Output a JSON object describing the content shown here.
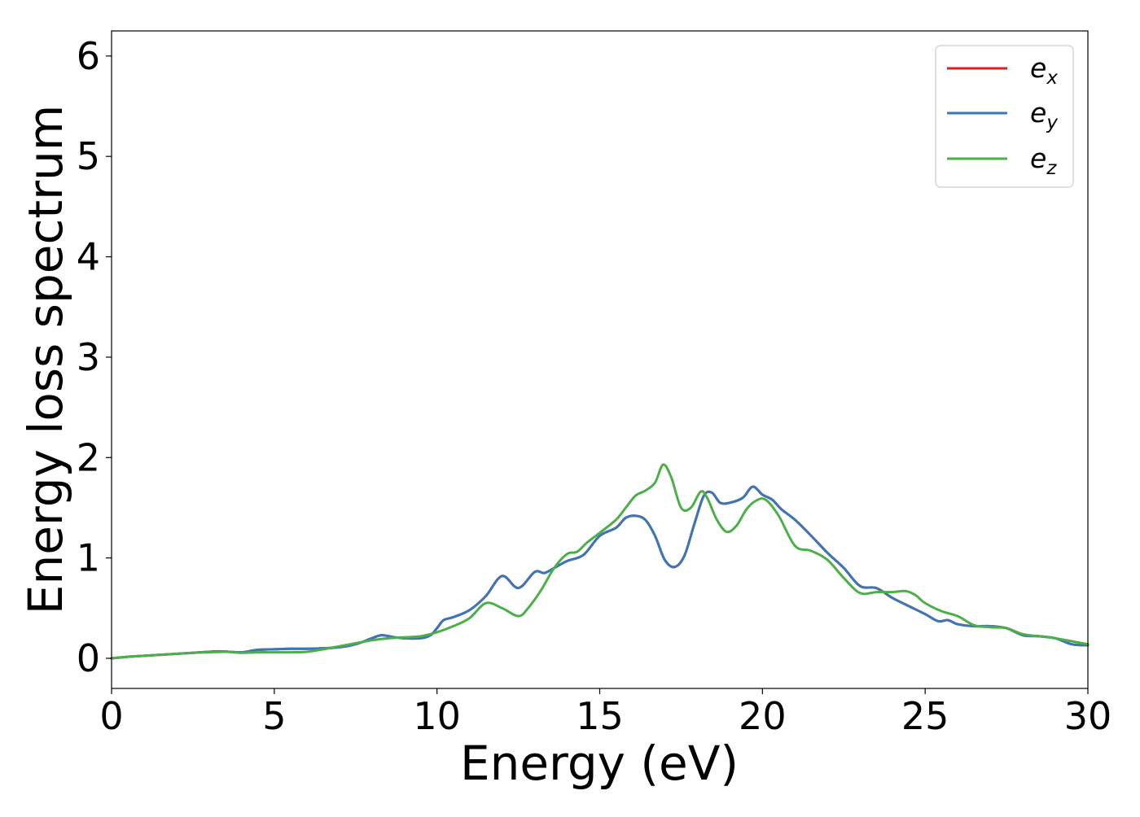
{
  "chart_data": {
    "type": "line",
    "xlabel": "Energy (eV)",
    "ylabel": "Energy loss spectrum",
    "xlim": [
      0,
      30
    ],
    "ylim": [
      -0.3,
      6.25
    ],
    "xticks": [
      0,
      5,
      10,
      15,
      20,
      25,
      30
    ],
    "yticks": [
      0,
      1,
      2,
      3,
      4,
      5,
      6
    ],
    "grid": false,
    "legend_position": "top-right",
    "series": [
      {
        "name": "e",
        "subscript": "x",
        "color": "#e41a1c",
        "x": [
          0,
          0.5,
          1,
          1.5,
          2,
          2.5,
          3,
          3.3,
          3.6,
          4,
          4.5,
          5,
          5.5,
          6,
          6.5,
          7,
          7.5,
          8,
          8.3,
          8.7,
          9,
          9.5,
          9.8,
          10,
          10.2,
          10.5,
          11,
          11.5,
          12,
          12.5,
          13,
          13.3,
          13.6,
          14,
          14.5,
          15,
          15.5,
          15.8,
          16.1,
          16.4,
          16.7,
          17,
          17.3,
          17.6,
          17.9,
          18.2,
          18.45,
          18.7,
          19,
          19.4,
          19.7,
          20,
          20.3,
          20.6,
          21,
          21.5,
          22,
          22.5,
          23,
          23.5,
          24,
          24.5,
          25,
          25.4,
          25.7,
          26,
          26.5,
          27,
          27.5,
          28,
          28.5,
          29,
          29.5,
          30
        ],
        "values": [
          0.0,
          0.015,
          0.025,
          0.035,
          0.045,
          0.055,
          0.065,
          0.07,
          0.065,
          0.06,
          0.085,
          0.09,
          0.095,
          0.095,
          0.1,
          0.11,
          0.14,
          0.2,
          0.23,
          0.21,
          0.2,
          0.2,
          0.23,
          0.3,
          0.38,
          0.41,
          0.48,
          0.62,
          0.82,
          0.7,
          0.86,
          0.85,
          0.9,
          0.97,
          1.03,
          1.22,
          1.3,
          1.4,
          1.42,
          1.38,
          1.22,
          0.98,
          0.91,
          1.02,
          1.33,
          1.62,
          1.65,
          1.55,
          1.55,
          1.6,
          1.71,
          1.63,
          1.58,
          1.48,
          1.38,
          1.22,
          1.05,
          0.9,
          0.72,
          0.7,
          0.6,
          0.52,
          0.44,
          0.37,
          0.38,
          0.34,
          0.32,
          0.32,
          0.3,
          0.23,
          0.22,
          0.2,
          0.14,
          0.13
        ]
      },
      {
        "name": "e",
        "subscript": "y",
        "color": "#3a77b8",
        "x": [
          0,
          0.5,
          1,
          1.5,
          2,
          2.5,
          3,
          3.3,
          3.6,
          4,
          4.5,
          5,
          5.5,
          6,
          6.5,
          7,
          7.5,
          8,
          8.3,
          8.7,
          9,
          9.5,
          9.8,
          10,
          10.2,
          10.5,
          11,
          11.5,
          12,
          12.5,
          13,
          13.3,
          13.6,
          14,
          14.5,
          15,
          15.5,
          15.8,
          16.1,
          16.4,
          16.7,
          17,
          17.3,
          17.6,
          17.9,
          18.2,
          18.45,
          18.7,
          19,
          19.4,
          19.7,
          20,
          20.3,
          20.6,
          21,
          21.5,
          22,
          22.5,
          23,
          23.5,
          24,
          24.5,
          25,
          25.4,
          25.7,
          26,
          26.5,
          27,
          27.5,
          28,
          28.5,
          29,
          29.5,
          30
        ],
        "values": [
          0.0,
          0.015,
          0.025,
          0.035,
          0.045,
          0.055,
          0.065,
          0.07,
          0.065,
          0.06,
          0.085,
          0.09,
          0.095,
          0.095,
          0.1,
          0.11,
          0.14,
          0.2,
          0.23,
          0.21,
          0.2,
          0.2,
          0.23,
          0.3,
          0.38,
          0.41,
          0.48,
          0.62,
          0.82,
          0.7,
          0.86,
          0.85,
          0.9,
          0.97,
          1.03,
          1.22,
          1.3,
          1.4,
          1.42,
          1.38,
          1.22,
          0.98,
          0.91,
          1.02,
          1.33,
          1.62,
          1.65,
          1.55,
          1.55,
          1.6,
          1.71,
          1.63,
          1.58,
          1.48,
          1.38,
          1.22,
          1.05,
          0.9,
          0.72,
          0.7,
          0.6,
          0.52,
          0.44,
          0.37,
          0.38,
          0.34,
          0.32,
          0.32,
          0.3,
          0.23,
          0.22,
          0.2,
          0.14,
          0.13
        ]
      },
      {
        "name": "e",
        "subscript": "z",
        "color": "#4daf4a",
        "x": [
          0,
          0.5,
          1,
          1.5,
          2,
          2.5,
          3,
          3.5,
          4,
          4.5,
          5,
          5.5,
          6,
          6.5,
          7,
          7.5,
          8,
          8.5,
          9,
          9.5,
          10,
          10.5,
          11,
          11.5,
          12,
          12.5,
          12.8,
          13.2,
          13.6,
          14,
          14.3,
          14.6,
          15,
          15.5,
          15.8,
          16.1,
          16.4,
          16.7,
          16.95,
          17.2,
          17.5,
          17.8,
          18.1,
          18.3,
          18.6,
          18.9,
          19.2,
          19.5,
          19.8,
          20.1,
          20.5,
          21,
          21.5,
          22,
          22.5,
          23,
          23.5,
          24,
          24.4,
          24.7,
          25,
          25.5,
          26,
          26.5,
          27,
          27.5,
          28,
          28.5,
          29,
          29.5,
          30
        ],
        "values": [
          0.0,
          0.015,
          0.025,
          0.035,
          0.045,
          0.055,
          0.06,
          0.065,
          0.055,
          0.06,
          0.06,
          0.06,
          0.065,
          0.09,
          0.12,
          0.15,
          0.18,
          0.2,
          0.21,
          0.22,
          0.26,
          0.32,
          0.4,
          0.55,
          0.5,
          0.42,
          0.5,
          0.68,
          0.9,
          1.04,
          1.06,
          1.15,
          1.25,
          1.38,
          1.5,
          1.62,
          1.67,
          1.75,
          1.93,
          1.8,
          1.5,
          1.5,
          1.66,
          1.6,
          1.38,
          1.26,
          1.32,
          1.48,
          1.57,
          1.58,
          1.42,
          1.12,
          1.07,
          0.98,
          0.8,
          0.65,
          0.66,
          0.66,
          0.67,
          0.63,
          0.55,
          0.47,
          0.42,
          0.33,
          0.31,
          0.3,
          0.24,
          0.22,
          0.2,
          0.17,
          0.14
        ]
      }
    ]
  }
}
